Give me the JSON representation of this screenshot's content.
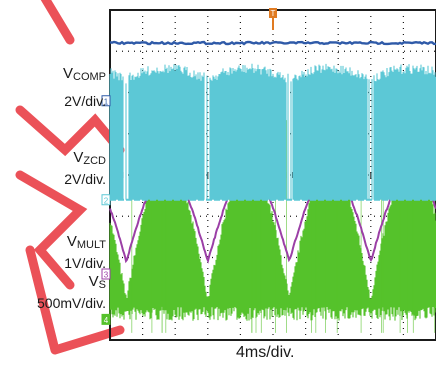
{
  "chart_data": {
    "type": "line",
    "title": "",
    "timebase": "4ms/div.",
    "grid": true,
    "divisions": {
      "x": 10,
      "y": 8
    },
    "trigger_marker": "T",
    "channels": [
      {
        "id": "1",
        "name": "V",
        "subscript": "COMP",
        "scale": "2V/div.",
        "color": "#2f5aa8",
        "description_level_div": 7.2
      },
      {
        "id": "2",
        "name": "V",
        "subscript": "ZCD",
        "scale": "2V/div.",
        "color": "#5cc8d6",
        "ground_div": 3.4
      },
      {
        "id": "3",
        "name": "V",
        "subscript": "MULT",
        "scale": "1V/div.",
        "color": "#9b3fa6",
        "ground_div": 1.9
      },
      {
        "id": "4",
        "name": "V",
        "subscript": "S",
        "scale": "500mV/div.",
        "color": "#55c22b",
        "ground_div": 0.9
      }
    ],
    "half_cycle_period_div": 2.5,
    "half_cycle_period_ms": 10
  },
  "colors": {
    "grid": "#1a1a1a",
    "frame": "#1a1a1a",
    "trigger": "#e07b22",
    "watermark": "#e8333b"
  }
}
